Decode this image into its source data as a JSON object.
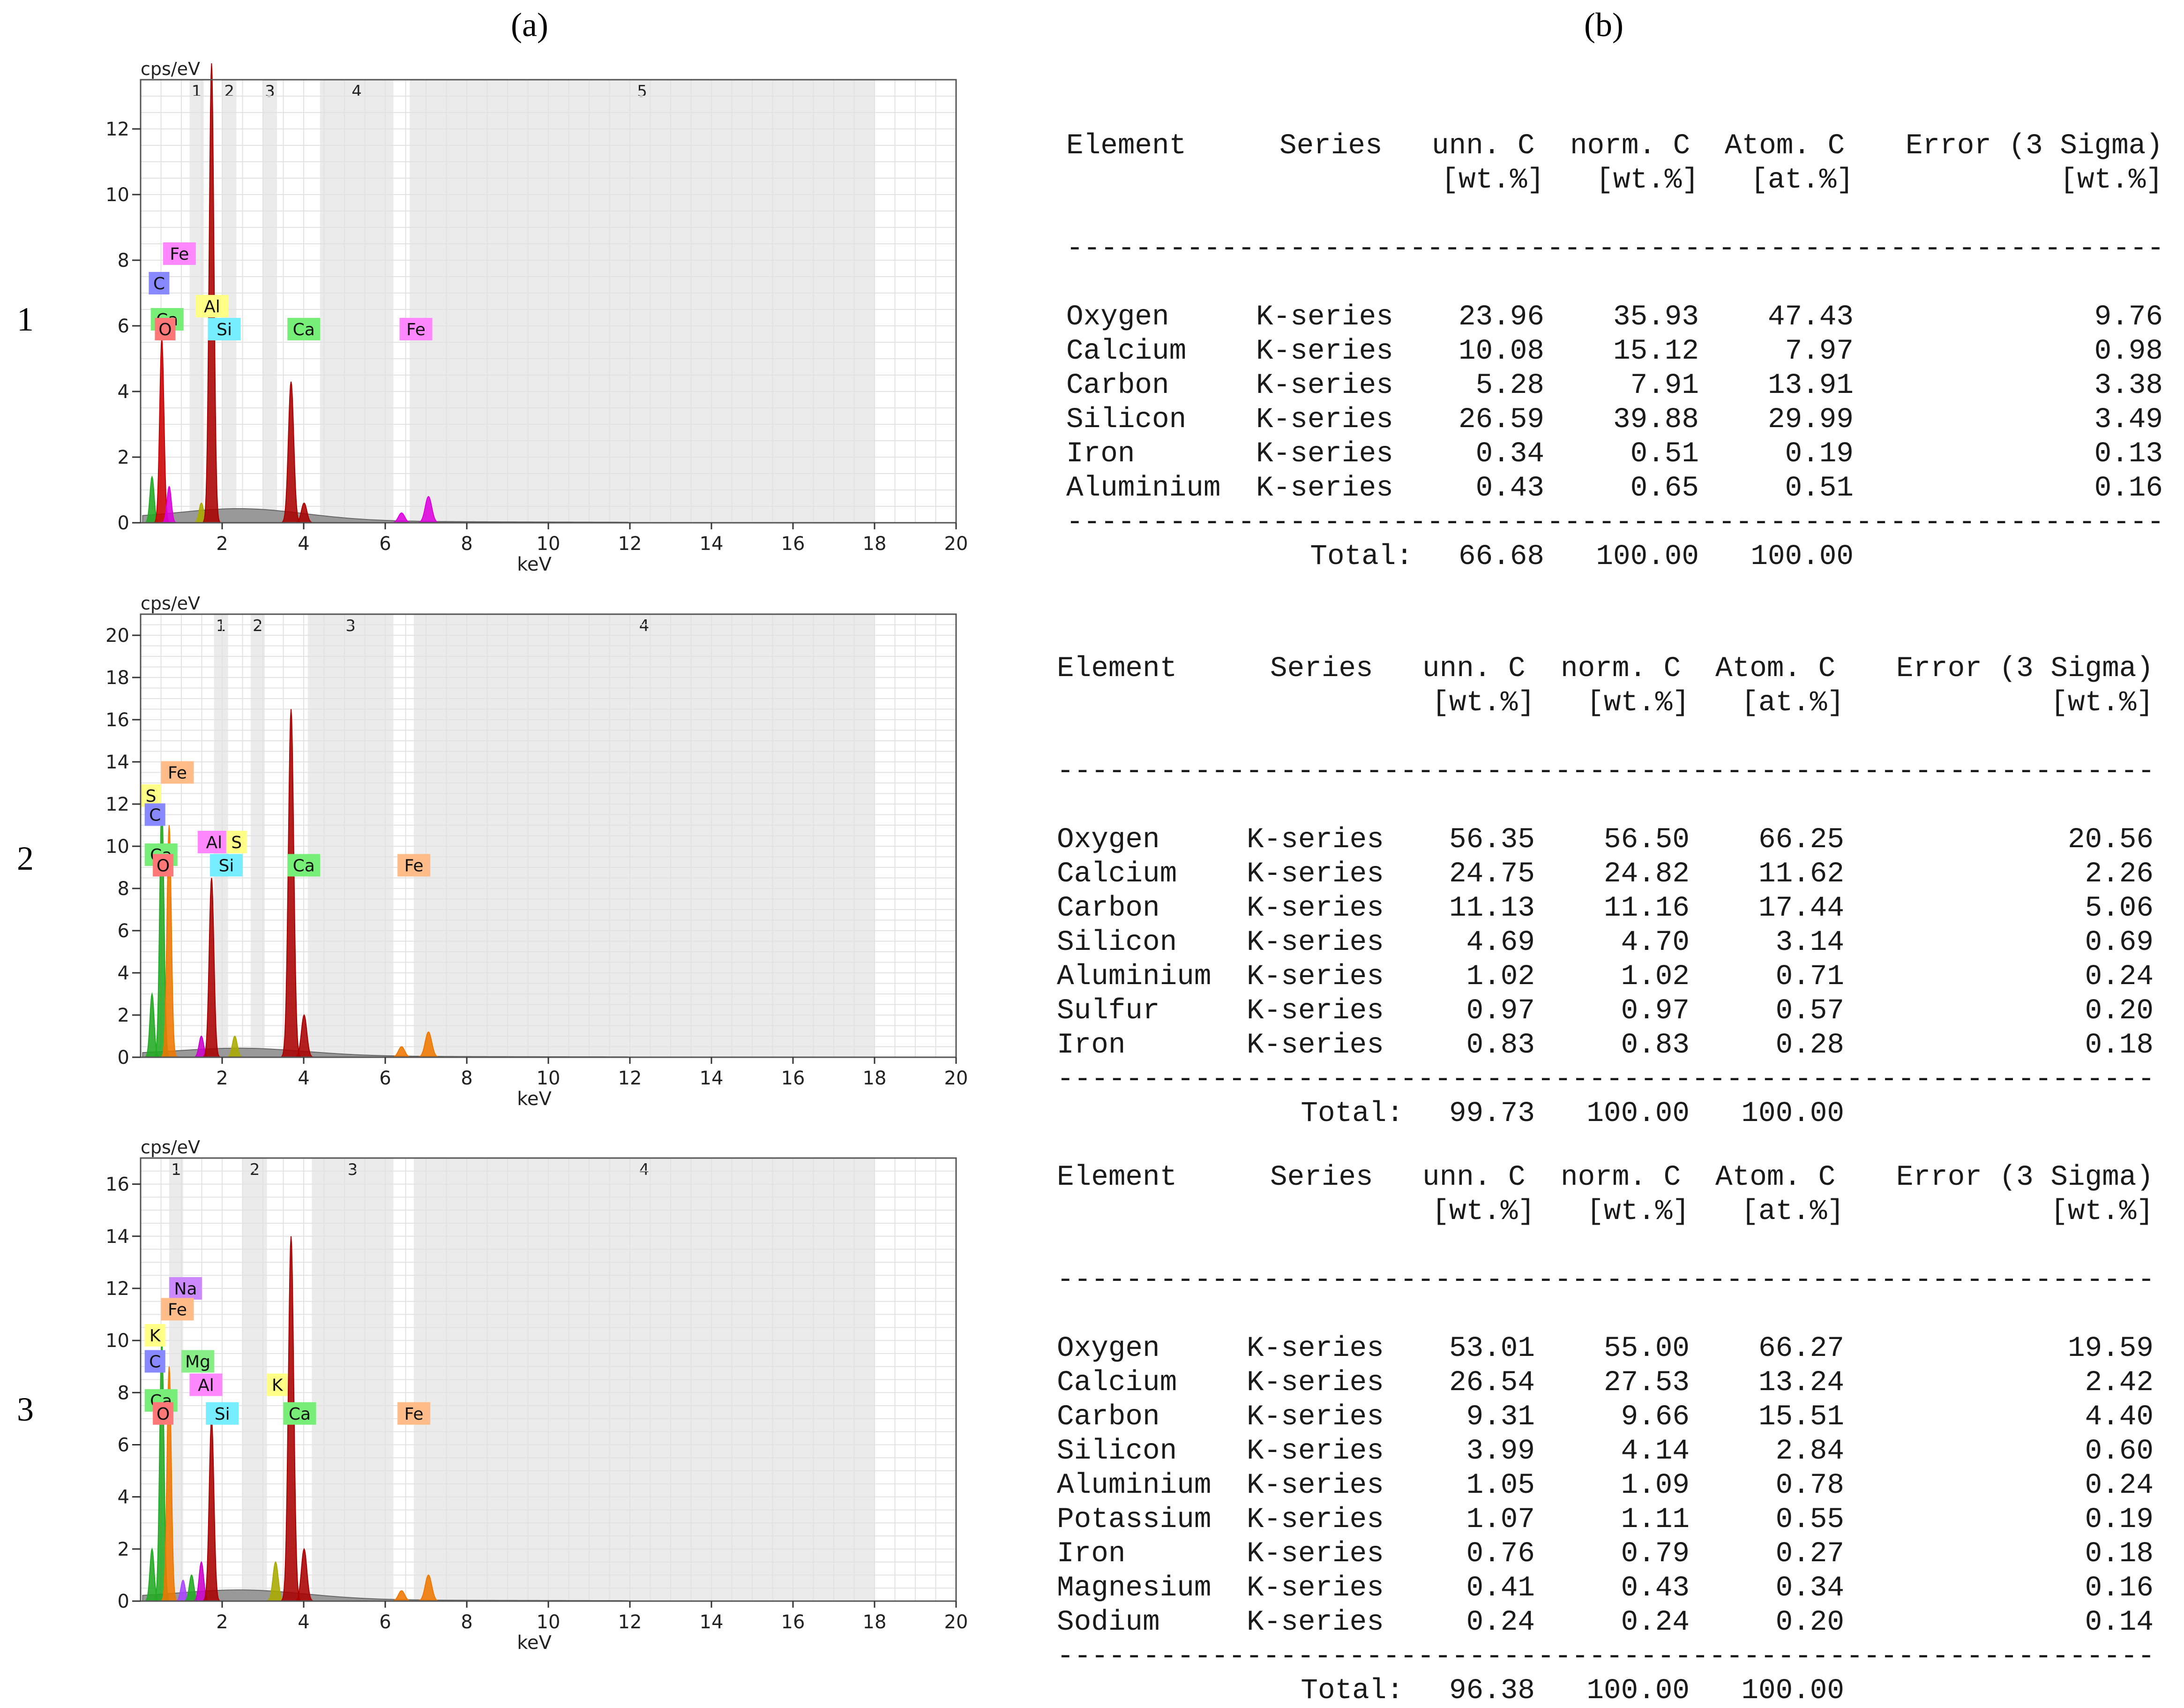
{
  "panel_labels": {
    "a": "(a)",
    "b": "(b)"
  },
  "row_labels": [
    "1",
    "2",
    "3"
  ],
  "chart_data": [
    {
      "type": "line",
      "title": "",
      "ylabel": "cps/eV",
      "xlabel": "keV",
      "xlim": [
        0,
        20
      ],
      "ylim": [
        0,
        13.5
      ],
      "xticks": [
        2,
        4,
        6,
        8,
        10,
        12,
        14,
        16,
        18,
        20
      ],
      "yticks": [
        0,
        2,
        4,
        6,
        8,
        10,
        12
      ],
      "regions": [
        {
          "label": "1",
          "from": 1.2,
          "to": 1.55
        },
        {
          "label": "2",
          "from": 2.0,
          "to": 2.35
        },
        {
          "label": "3",
          "from": 3.0,
          "to": 3.0
        },
        {
          "label": "4",
          "from": 4.4,
          "to": 6.2
        },
        {
          "label": "5",
          "from": 6.6,
          "to": 18.0
        }
      ],
      "peaks": [
        {
          "element": "C",
          "energy": 0.28,
          "height": 1.4,
          "color": "#22aa22"
        },
        {
          "element": "O",
          "energy": 0.52,
          "height": 5.6,
          "color": "#cc0000"
        },
        {
          "element": "Fe",
          "energy": 0.7,
          "height": 1.1,
          "color": "#dd00dd"
        },
        {
          "element": "Al",
          "energy": 1.49,
          "height": 0.6,
          "color": "#aaaa00"
        },
        {
          "element": "Si",
          "energy": 1.74,
          "height": 14.0,
          "color": "#aa0000"
        },
        {
          "element": "Ca",
          "energy": 3.69,
          "height": 4.3,
          "color": "#aa0000"
        },
        {
          "element": "Ca",
          "energy": 4.01,
          "height": 0.6,
          "color": "#aa0000"
        },
        {
          "element": "Fe",
          "energy": 6.4,
          "height": 0.3,
          "color": "#dd00dd"
        },
        {
          "element": "Fe",
          "energy": 7.06,
          "height": 0.8,
          "color": "#dd00dd"
        }
      ],
      "element_labels": [
        {
          "text": "Fe",
          "energy": 0.55,
          "y": 8.2,
          "color": "#ff88ff"
        },
        {
          "text": "C",
          "energy": 0.2,
          "y": 7.3,
          "color": "#8888ff"
        },
        {
          "text": "Al",
          "energy": 1.35,
          "y": 6.6,
          "color": "#ffff88"
        },
        {
          "text": "Ca",
          "energy": 0.25,
          "y": 6.2,
          "color": "#77ee77"
        },
        {
          "text": "O",
          "energy": 0.35,
          "y": 5.9,
          "color": "#ff7777"
        },
        {
          "text": "Si",
          "energy": 1.65,
          "y": 5.9,
          "color": "#77eeff"
        },
        {
          "text": "Ca",
          "energy": 3.6,
          "y": 5.9,
          "color": "#77ee77"
        },
        {
          "text": "Fe",
          "energy": 6.35,
          "y": 5.9,
          "color": "#ff88ff"
        }
      ]
    },
    {
      "type": "line",
      "title": "",
      "ylabel": "cps/eV",
      "xlabel": "keV",
      "xlim": [
        0,
        20
      ],
      "ylim": [
        0,
        21
      ],
      "xticks": [
        2,
        4,
        6,
        8,
        10,
        12,
        14,
        16,
        18,
        20
      ],
      "yticks": [
        0,
        2,
        4,
        6,
        8,
        10,
        12,
        14,
        16,
        18,
        20
      ],
      "regions": [
        {
          "label": "1",
          "from": 1.8,
          "to": 2.05
        },
        {
          "label": "2",
          "from": 2.7,
          "to": 2.8
        },
        {
          "label": "3",
          "from": 4.1,
          "to": 6.2
        },
        {
          "label": "4",
          "from": 6.7,
          "to": 18.0
        }
      ],
      "peaks": [
        {
          "element": "C",
          "energy": 0.28,
          "height": 3.0,
          "color": "#22aa22"
        },
        {
          "element": "O",
          "energy": 0.52,
          "height": 12.0,
          "color": "#22aa22"
        },
        {
          "element": "Fe",
          "energy": 0.7,
          "height": 11.0,
          "color": "#ee7700"
        },
        {
          "element": "Al",
          "energy": 1.49,
          "height": 1.0,
          "color": "#cc00cc"
        },
        {
          "element": "Si",
          "energy": 1.74,
          "height": 8.5,
          "color": "#aa0000"
        },
        {
          "element": "S",
          "energy": 2.31,
          "height": 1.0,
          "color": "#aaaa00"
        },
        {
          "element": "Ca",
          "energy": 3.69,
          "height": 16.5,
          "color": "#aa0000"
        },
        {
          "element": "Ca",
          "energy": 4.01,
          "height": 2.0,
          "color": "#aa0000"
        },
        {
          "element": "Fe",
          "energy": 6.4,
          "height": 0.5,
          "color": "#ee7700"
        },
        {
          "element": "Fe",
          "energy": 7.06,
          "height": 1.2,
          "color": "#ee7700"
        }
      ],
      "element_labels": [
        {
          "text": "Fe",
          "energy": 0.5,
          "y": 13.5,
          "color": "#ffbb88"
        },
        {
          "text": "S",
          "energy": 0.0,
          "y": 12.4,
          "color": "#ffff88"
        },
        {
          "text": "C",
          "energy": 0.1,
          "y": 11.5,
          "color": "#8888ff"
        },
        {
          "text": "Al",
          "energy": 1.4,
          "y": 10.2,
          "color": "#ff88ff"
        },
        {
          "text": "S",
          "energy": 2.1,
          "y": 10.2,
          "color": "#ffff88"
        },
        {
          "text": "Ca",
          "energy": 0.1,
          "y": 9.6,
          "color": "#77ee77"
        },
        {
          "text": "O",
          "energy": 0.3,
          "y": 9.1,
          "color": "#ff7777"
        },
        {
          "text": "Si",
          "energy": 1.7,
          "y": 9.1,
          "color": "#77eeff"
        },
        {
          "text": "Ca",
          "energy": 3.6,
          "y": 9.1,
          "color": "#77ee77"
        },
        {
          "text": "Fe",
          "energy": 6.3,
          "y": 9.1,
          "color": "#ffbb88"
        }
      ]
    },
    {
      "type": "line",
      "title": "",
      "ylabel": "cps/eV",
      "xlabel": "keV",
      "xlim": [
        0,
        20
      ],
      "ylim": [
        0,
        17
      ],
      "xticks": [
        2,
        4,
        6,
        8,
        10,
        12,
        14,
        16,
        18,
        20
      ],
      "yticks": [
        0,
        2,
        4,
        6,
        8,
        10,
        12,
        14,
        16
      ],
      "regions": [
        {
          "label": "1",
          "from": 0.7,
          "to": 0.9
        },
        {
          "label": "2",
          "from": 2.5,
          "to": 3.1
        },
        {
          "label": "3",
          "from": 4.2,
          "to": 6.2
        },
        {
          "label": "4",
          "from": 6.7,
          "to": 18.0
        }
      ],
      "peaks": [
        {
          "element": "C",
          "energy": 0.28,
          "height": 2.0,
          "color": "#22aa22"
        },
        {
          "element": "O",
          "energy": 0.52,
          "height": 10.0,
          "color": "#22aa22"
        },
        {
          "element": "Fe",
          "energy": 0.7,
          "height": 9.0,
          "color": "#ee7700"
        },
        {
          "element": "Na",
          "energy": 1.04,
          "height": 0.8,
          "color": "#aa44ff"
        },
        {
          "element": "Mg",
          "energy": 1.25,
          "height": 1.0,
          "color": "#22aa22"
        },
        {
          "element": "Al",
          "energy": 1.49,
          "height": 1.5,
          "color": "#cc00cc"
        },
        {
          "element": "Si",
          "energy": 1.74,
          "height": 7.0,
          "color": "#aa0000"
        },
        {
          "element": "K",
          "energy": 3.31,
          "height": 1.5,
          "color": "#aaaa00"
        },
        {
          "element": "Ca",
          "energy": 3.69,
          "height": 14.0,
          "color": "#aa0000"
        },
        {
          "element": "Ca",
          "energy": 4.01,
          "height": 2.0,
          "color": "#aa0000"
        },
        {
          "element": "Fe",
          "energy": 6.4,
          "height": 0.4,
          "color": "#ee7700"
        },
        {
          "element": "Fe",
          "energy": 7.06,
          "height": 1.0,
          "color": "#ee7700"
        }
      ],
      "element_labels": [
        {
          "text": "Na",
          "energy": 0.7,
          "y": 12.0,
          "color": "#cc88ff"
        },
        {
          "text": "Fe",
          "energy": 0.5,
          "y": 11.2,
          "color": "#ffbb88"
        },
        {
          "text": "K",
          "energy": 0.1,
          "y": 10.2,
          "color": "#ffff88"
        },
        {
          "text": "C",
          "energy": 0.1,
          "y": 9.2,
          "color": "#8888ff"
        },
        {
          "text": "Mg",
          "energy": 1.0,
          "y": 9.2,
          "color": "#88ee88"
        },
        {
          "text": "Al",
          "energy": 1.2,
          "y": 8.3,
          "color": "#ff88ff"
        },
        {
          "text": "K",
          "energy": 3.1,
          "y": 8.3,
          "color": "#ffff88"
        },
        {
          "text": "Ca",
          "energy": 0.1,
          "y": 7.7,
          "color": "#77ee77"
        },
        {
          "text": "O",
          "energy": 0.3,
          "y": 7.2,
          "color": "#ff7777"
        },
        {
          "text": "Si",
          "energy": 1.6,
          "y": 7.2,
          "color": "#77eeff"
        },
        {
          "text": "Ca",
          "energy": 3.5,
          "y": 7.2,
          "color": "#77ee77"
        },
        {
          "text": "Fe",
          "energy": 6.3,
          "y": 7.2,
          "color": "#ffbb88"
        }
      ]
    }
  ],
  "tables": [
    {
      "header1": [
        "Element",
        "Series",
        "unn. C",
        "norm. C",
        "Atom. C",
        "Error (3 Sigma)"
      ],
      "header2": [
        "[wt.%]",
        "[wt.%]",
        "[at.%]",
        "[wt.%]"
      ],
      "rows": [
        [
          "Oxygen",
          "K-series",
          "23.96",
          "35.93",
          "47.43",
          "9.76"
        ],
        [
          "Calcium",
          "K-series",
          "10.08",
          "15.12",
          "7.97",
          "0.98"
        ],
        [
          "Carbon",
          "K-series",
          "5.28",
          "7.91",
          "13.91",
          "3.38"
        ],
        [
          "Silicon",
          "K-series",
          "26.59",
          "39.88",
          "29.99",
          "3.49"
        ],
        [
          "Iron",
          "K-series",
          "0.34",
          "0.51",
          "0.19",
          "0.13"
        ],
        [
          "Aluminium",
          "K-series",
          "0.43",
          "0.65",
          "0.51",
          "0.16"
        ]
      ],
      "total": [
        "Total:",
        "66.68",
        "100.00",
        "100.00"
      ]
    },
    {
      "header1": [
        "Element",
        "Series",
        "unn. C",
        "norm. C",
        "Atom. C",
        "Error (3 Sigma)"
      ],
      "header2": [
        "[wt.%]",
        "[wt.%]",
        "[at.%]",
        "[wt.%]"
      ],
      "rows": [
        [
          "Oxygen",
          "K-series",
          "56.35",
          "56.50",
          "66.25",
          "20.56"
        ],
        [
          "Calcium",
          "K-series",
          "24.75",
          "24.82",
          "11.62",
          "2.26"
        ],
        [
          "Carbon",
          "K-series",
          "11.13",
          "11.16",
          "17.44",
          "5.06"
        ],
        [
          "Silicon",
          "K-series",
          "4.69",
          "4.70",
          "3.14",
          "0.69"
        ],
        [
          "Aluminium",
          "K-series",
          "1.02",
          "1.02",
          "0.71",
          "0.24"
        ],
        [
          "Sulfur",
          "K-series",
          "0.97",
          "0.97",
          "0.57",
          "0.20"
        ],
        [
          "Iron",
          "K-series",
          "0.83",
          "0.83",
          "0.28",
          "0.18"
        ]
      ],
      "total": [
        "Total:",
        "99.73",
        "100.00",
        "100.00"
      ]
    },
    {
      "header1": [
        "Element",
        "Series",
        "unn. C",
        "norm. C",
        "Atom. C",
        "Error (3 Sigma)"
      ],
      "header2": [
        "[wt.%]",
        "[wt.%]",
        "[at.%]",
        "[wt.%]"
      ],
      "rows": [
        [
          "Oxygen",
          "K-series",
          "53.01",
          "55.00",
          "66.27",
          "19.59"
        ],
        [
          "Calcium",
          "K-series",
          "26.54",
          "27.53",
          "13.24",
          "2.42"
        ],
        [
          "Carbon",
          "K-series",
          "9.31",
          "9.66",
          "15.51",
          "4.40"
        ],
        [
          "Silicon",
          "K-series",
          "3.99",
          "4.14",
          "2.84",
          "0.60"
        ],
        [
          "Aluminium",
          "K-series",
          "1.05",
          "1.09",
          "0.78",
          "0.24"
        ],
        [
          "Potassium",
          "K-series",
          "1.07",
          "1.11",
          "0.55",
          "0.19"
        ],
        [
          "Iron",
          "K-series",
          "0.76",
          "0.79",
          "0.27",
          "0.18"
        ],
        [
          "Magnesium",
          "K-series",
          "0.41",
          "0.43",
          "0.34",
          "0.16"
        ],
        [
          "Sodium",
          "K-series",
          "0.24",
          "0.24",
          "0.20",
          "0.14"
        ]
      ],
      "total": [
        "Total:",
        "96.38",
        "100.00",
        "100.00"
      ]
    }
  ]
}
